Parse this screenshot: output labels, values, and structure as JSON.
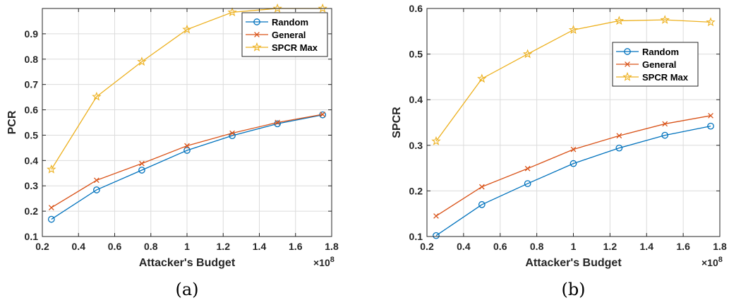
{
  "chart_data": [
    {
      "type": "line",
      "caption": "(a)",
      "xlabel": "Attacker's Budget",
      "ylabel": "PCR",
      "x_exponent_label": "×10^8",
      "xlim": [
        0.2,
        1.8
      ],
      "ylim": [
        0.1,
        1.0
      ],
      "xticks": [
        0.2,
        0.4,
        0.6,
        0.8,
        1,
        1.2,
        1.4,
        1.6,
        1.8
      ],
      "xtick_labels": [
        "0.2",
        "0.4",
        "0.6",
        "0.8",
        "1",
        "1.2",
        "1.4",
        "1.6",
        "1.8"
      ],
      "yticks": [
        0.1,
        0.2,
        0.3,
        0.4,
        0.5,
        0.6,
        0.7,
        0.8,
        0.9
      ],
      "ytick_labels": [
        "0.1",
        "0.2",
        "0.3",
        "0.4",
        "0.5",
        "0.6",
        "0.7",
        "0.8",
        "0.9"
      ],
      "grid": true,
      "legend_position": "top-right",
      "x": [
        0.25,
        0.5,
        0.75,
        1.0,
        1.25,
        1.5,
        1.75
      ],
      "series": [
        {
          "name": "Random",
          "color": "#0072BD",
          "marker": "circle",
          "values": [
            0.168,
            0.284,
            0.362,
            0.44,
            0.498,
            0.545,
            0.58
          ]
        },
        {
          "name": "General",
          "color": "#D95319",
          "marker": "x",
          "values": [
            0.214,
            0.322,
            0.388,
            0.458,
            0.508,
            0.55,
            0.582
          ]
        },
        {
          "name": "SPCR Max",
          "color": "#EDB120",
          "marker": "star",
          "values": [
            0.365,
            0.652,
            0.79,
            0.917,
            0.985,
            1.0,
            1.0
          ]
        }
      ]
    },
    {
      "type": "line",
      "caption": "(b)",
      "xlabel": "Attacker's Budget",
      "ylabel": "SPCR",
      "x_exponent_label": "×10^8",
      "xlim": [
        0.2,
        1.8
      ],
      "ylim": [
        0.1,
        0.6
      ],
      "xticks": [
        0.2,
        0.4,
        0.6,
        0.8,
        1,
        1.2,
        1.4,
        1.6,
        1.8
      ],
      "xtick_labels": [
        "0.2",
        "0.4",
        "0.6",
        "0.8",
        "1",
        "1.2",
        "1.4",
        "1.6",
        "1.8"
      ],
      "yticks": [
        0.1,
        0.2,
        0.3,
        0.4,
        0.5,
        0.6
      ],
      "ytick_labels": [
        "0.1",
        "0.2",
        "0.3",
        "0.4",
        "0.5",
        "0.6"
      ],
      "grid": true,
      "legend_position": "upper-right",
      "x": [
        0.25,
        0.5,
        0.75,
        1.0,
        1.25,
        1.5,
        1.75
      ],
      "series": [
        {
          "name": "Random",
          "color": "#0072BD",
          "marker": "circle",
          "values": [
            0.102,
            0.17,
            0.216,
            0.26,
            0.294,
            0.322,
            0.342
          ]
        },
        {
          "name": "General",
          "color": "#D95319",
          "marker": "x",
          "values": [
            0.145,
            0.209,
            0.249,
            0.291,
            0.321,
            0.347,
            0.365
          ]
        },
        {
          "name": "SPCR Max",
          "color": "#EDB120",
          "marker": "star",
          "values": [
            0.309,
            0.446,
            0.5,
            0.553,
            0.573,
            0.575,
            0.57
          ]
        }
      ]
    }
  ]
}
